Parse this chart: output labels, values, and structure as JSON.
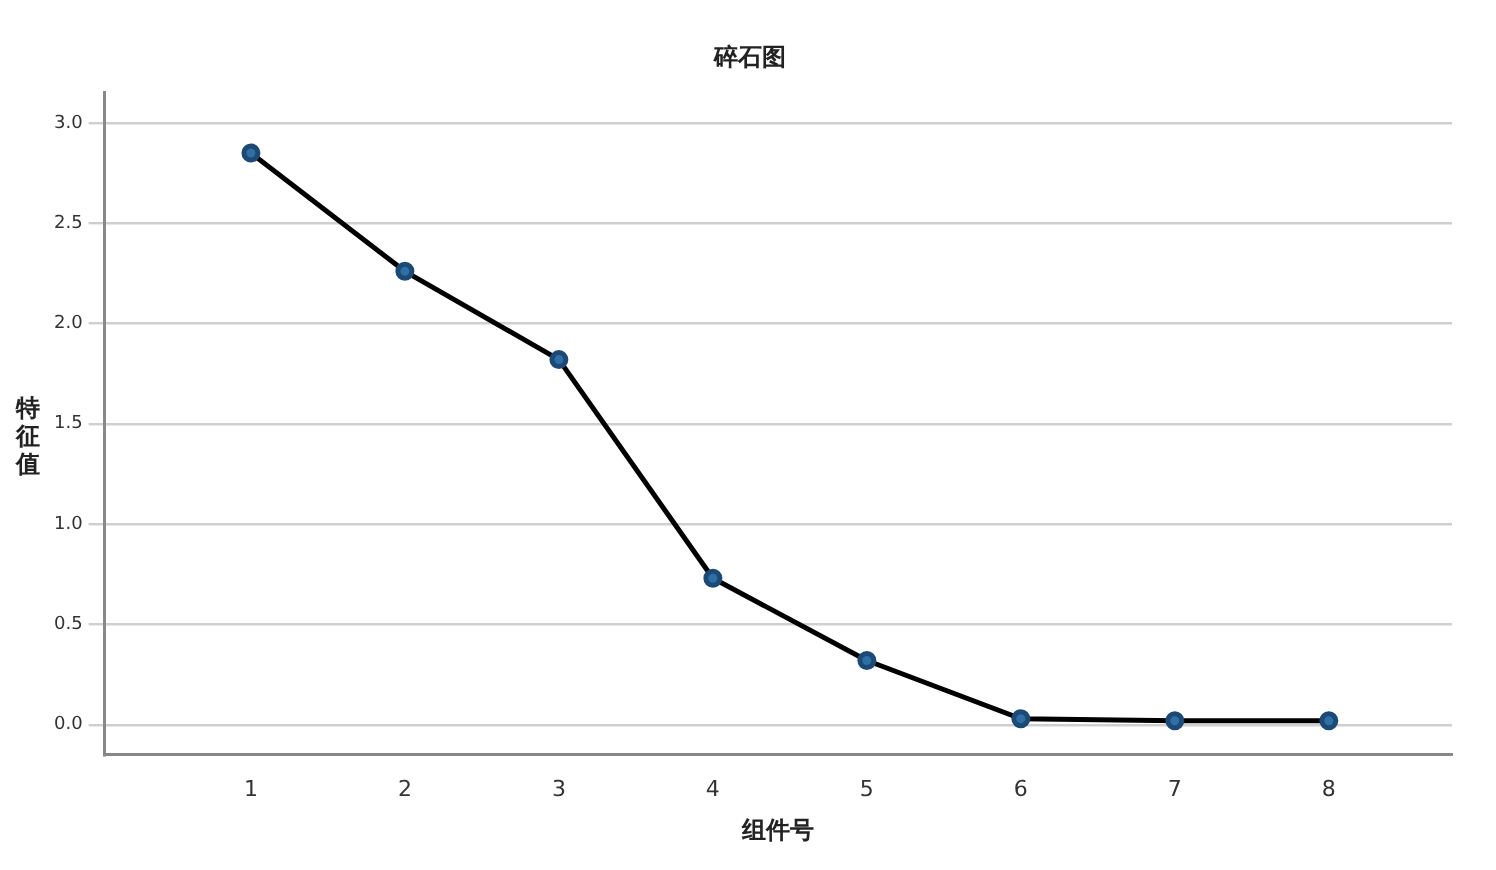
{
  "chart_data": {
    "type": "line",
    "title": "碎石图",
    "xlabel": "组件号",
    "ylabel": "特征值",
    "x": [
      1,
      2,
      3,
      4,
      5,
      6,
      7,
      8
    ],
    "series": [
      {
        "color": "#000000",
        "values": [
          2.85,
          2.26,
          1.82,
          0.73,
          0.32,
          0.03,
          0.02,
          0.02
        ]
      }
    ],
    "xlim": [
      0.05,
      8.8
    ],
    "xticks": [
      1,
      2,
      3,
      4,
      5,
      6,
      7,
      8
    ],
    "ylim": [
      -0.15,
      3.15
    ],
    "yticks": [
      {
        "value": 0,
        "label": "0.0"
      },
      {
        "value": 0.5,
        "label": "0.5"
      },
      {
        "value": 1,
        "label": "1.0"
      },
      {
        "value": 1.5,
        "label": "1.5"
      },
      {
        "value": 2,
        "label": "2.0"
      },
      {
        "value": 2.5,
        "label": "2.5"
      },
      {
        "value": 3,
        "label": "3.0"
      }
    ],
    "grid": "y",
    "marker": "circle",
    "line_style": "solid",
    "legend": false
  }
}
